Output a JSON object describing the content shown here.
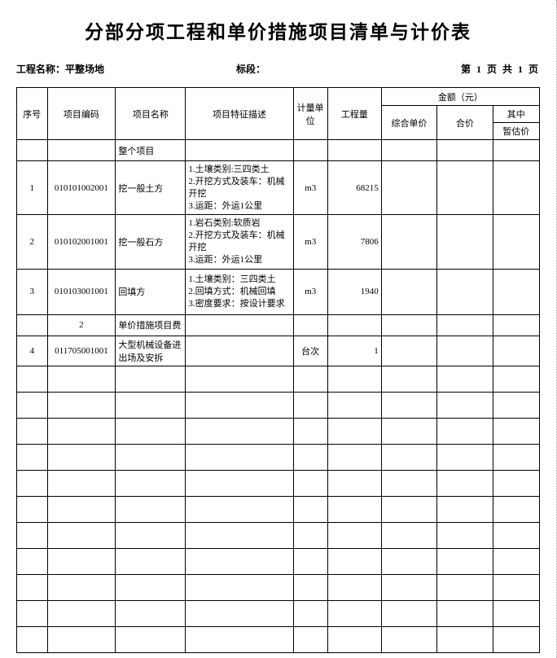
{
  "title": "分部分项工程和单价措施项目清单与计价表",
  "meta": {
    "project_label": "工程名称：",
    "project_name": "平整场地",
    "section_label": "标段：",
    "section_value": "",
    "page_text": "第 1 页 共 1 页"
  },
  "headers": {
    "seq": "序号",
    "code": "项目编码",
    "name": "项目名称",
    "desc": "项目特征描述",
    "unit": "计量单位",
    "qty": "工程量",
    "amount": "金额（元）",
    "unit_price": "综合单价",
    "total": "合价",
    "of_which": "其中",
    "provisional": "暂估价"
  },
  "sections": {
    "whole": "整个项目",
    "measure_no": "2",
    "measure_name": "单价措施项目费"
  },
  "rows": [
    {
      "seq": "1",
      "code": "010101002001",
      "name": "挖一般土方",
      "desc": "1.土壤类别:三四类土\n2.开挖方式及装车：机械开挖\n3.运距：外运1公里",
      "unit": "m3",
      "qty": "68215"
    },
    {
      "seq": "2",
      "code": "010102001001",
      "name": "挖一般石方",
      "desc": "1.岩石类别:软质岩\n2.开挖方式及装车：机械开挖\n3.运距：外运1公里",
      "unit": "m3",
      "qty": "7806"
    },
    {
      "seq": "3",
      "code": "010103001001",
      "name": "回填方",
      "desc": "1.土壤类别：三四类土\n2.回填方式：机械回填\n3.密度要求：按设计要求",
      "unit": "m3",
      "qty": "1940"
    },
    {
      "seq": "4",
      "code": "011705001001",
      "name": "大型机械设备进出场及安拆",
      "desc": "",
      "unit": "台次",
      "qty": "1"
    }
  ],
  "colors": {
    "bg": "#ffffff",
    "text": "#000000",
    "border": "#000000"
  }
}
